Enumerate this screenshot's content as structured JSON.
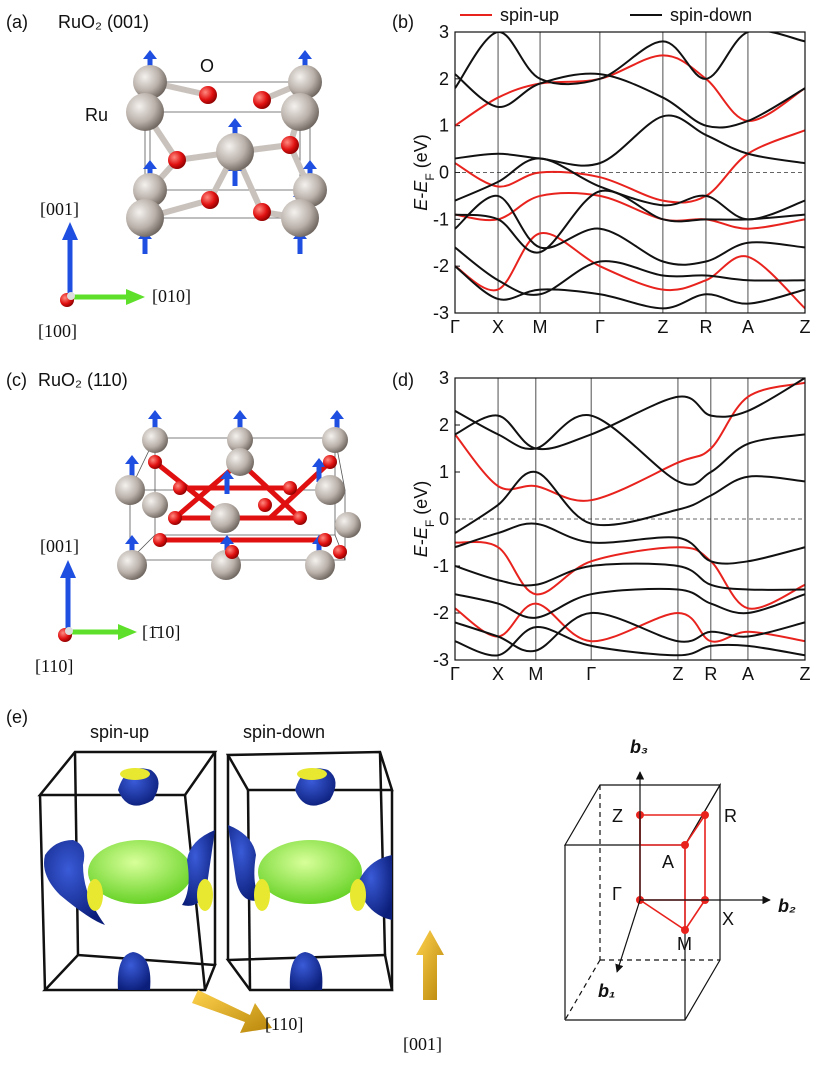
{
  "panel_labels": [
    "(a)",
    "(b)",
    "(c)",
    "(d)",
    "(e)"
  ],
  "structure_a": {
    "title": "RuO₂ (001)",
    "atom_labels": [
      "O",
      "Ru"
    ],
    "axes": [
      "[001]",
      "[010]",
      "[100]"
    ]
  },
  "structure_c": {
    "title": "RuO₂ (110)",
    "axes": [
      "[001]",
      "[1̄10]",
      "[110]"
    ]
  },
  "chart_data": [
    {
      "type": "line",
      "ylabel_parts": [
        "E",
        "-",
        "E",
        "F",
        " (eV)"
      ],
      "x": [
        0,
        0.123,
        0.243,
        0.414,
        0.594,
        0.717,
        0.837,
        1
      ],
      "xlim": [
        0,
        1
      ],
      "ylim": [
        -3,
        3
      ],
      "yticks": [
        -3,
        -2,
        -1,
        0,
        1,
        2,
        3
      ],
      "xticks": [
        {
          "value": 0,
          "label": "Γ"
        },
        {
          "value": 0.123,
          "label": "X"
        },
        {
          "value": 0.243,
          "label": "M"
        },
        {
          "value": 0.414,
          "label": "Γ"
        },
        {
          "value": 0.594,
          "label": "Z"
        },
        {
          "value": 0.717,
          "label": "R"
        },
        {
          "value": 0.837,
          "label": "A"
        },
        {
          "value": 1,
          "label": "Z"
        }
      ],
      "reference_line": 0,
      "legend": "top",
      "series": [
        {
          "name": "spin-up",
          "color": "#e8231e",
          "bands": [
            [
              1.0,
              1.6,
              1.9,
              2.0,
              2.5,
              2.0,
              1.1,
              1.8
            ],
            [
              0.2,
              -0.3,
              0.0,
              -0.1,
              -0.6,
              -0.5,
              0.4,
              0.9
            ],
            [
              -0.9,
              -1.0,
              -0.5,
              -0.5,
              -1.0,
              -1.0,
              -1.2,
              -1.0
            ],
            [
              -2.0,
              -2.5,
              -1.3,
              -2.0,
              -2.5,
              -2.3,
              -1.8,
              -2.9
            ]
          ]
        },
        {
          "name": "spin-down",
          "color": "#111111",
          "bands": [
            [
              2.1,
              1.4,
              1.9,
              2.1,
              1.6,
              1.0,
              1.1,
              1.8
            ],
            [
              1.8,
              3.0,
              2.0,
              2.0,
              2.8,
              2.0,
              3.0,
              2.8
            ],
            [
              0.3,
              0.4,
              0.3,
              0.2,
              1.2,
              0.8,
              0.4,
              0.2
            ],
            [
              -0.6,
              -0.2,
              0.3,
              -0.3,
              -0.7,
              -0.5,
              -1.0,
              -0.6
            ],
            [
              -0.9,
              -1.0,
              -1.7,
              -0.4,
              -1.0,
              -1.0,
              -1.0,
              -0.9
            ],
            [
              -1.2,
              -0.5,
              -1.6,
              -1.2,
              -1.9,
              -1.9,
              -1.5,
              -1.6
            ],
            [
              -1.6,
              -2.3,
              -2.6,
              -1.9,
              -2.2,
              -2.2,
              -2.3,
              -2.3
            ],
            [
              -2.0,
              -2.7,
              -2.5,
              -2.6,
              -2.9,
              -2.6,
              -2.8,
              -2.5
            ]
          ]
        }
      ]
    },
    {
      "type": "line",
      "ylabel_parts": [
        "E",
        "-",
        "E",
        "F",
        " (eV)"
      ],
      "x": [
        0,
        0.123,
        0.231,
        0.389,
        0.637,
        0.731,
        0.837,
        1
      ],
      "xlim": [
        0,
        1
      ],
      "ylim": [
        -3,
        3
      ],
      "yticks": [
        -3,
        -2,
        -1,
        0,
        1,
        2,
        3
      ],
      "xticks": [
        {
          "value": 0,
          "label": "Γ"
        },
        {
          "value": 0.123,
          "label": "X"
        },
        {
          "value": 0.231,
          "label": "M"
        },
        {
          "value": 0.389,
          "label": "Γ"
        },
        {
          "value": 0.637,
          "label": "Z"
        },
        {
          "value": 0.731,
          "label": "R"
        },
        {
          "value": 0.837,
          "label": "A"
        },
        {
          "value": 1,
          "label": "Z"
        }
      ],
      "reference_line": 0,
      "series": [
        {
          "color": "#e8231e",
          "bands": [
            [
              1.8,
              0.7,
              0.7,
              0.4,
              1.2,
              1.5,
              2.6,
              2.9
            ],
            [
              -0.5,
              -0.6,
              -1.6,
              -0.9,
              -0.6,
              -0.9,
              -1.9,
              -1.4
            ],
            [
              -1.9,
              -2.5,
              -1.8,
              -2.6,
              -2.0,
              -2.6,
              -2.4,
              -2.6
            ]
          ]
        },
        {
          "color": "#111111",
          "bands": [
            [
              2.3,
              1.8,
              1.5,
              2.2,
              0.8,
              1.0,
              1.6,
              1.8
            ],
            [
              1.8,
              2.2,
              1.5,
              1.8,
              2.6,
              2.2,
              2.3,
              3.0
            ],
            [
              -0.3,
              0.3,
              1.0,
              -0.1,
              0.2,
              0.5,
              0.9,
              0.8
            ],
            [
              -0.6,
              -0.3,
              -0.1,
              -0.5,
              -0.4,
              -0.9,
              -0.9,
              -0.6
            ],
            [
              -1.0,
              -1.3,
              -1.4,
              -1.0,
              -1.0,
              -1.4,
              -1.5,
              -1.5
            ],
            [
              -1.6,
              -1.8,
              -2.1,
              -1.6,
              -1.5,
              -1.8,
              -2.0,
              -1.6
            ],
            [
              -2.2,
              -2.5,
              -2.8,
              -2.0,
              -2.6,
              -2.4,
              -2.5,
              -2.2
            ],
            [
              -2.6,
              -2.9,
              -2.3,
              -2.7,
              -2.9,
              -2.7,
              -2.7,
              -2.9
            ]
          ]
        }
      ]
    }
  ],
  "fermi_surface": {
    "labels": [
      "spin-up",
      "spin-down"
    ],
    "axes": [
      "[110]",
      "[001]"
    ]
  },
  "brillouin_zone": {
    "vectors": [
      "b₃",
      "b₂",
      "b₁"
    ],
    "points": [
      "Z",
      "R",
      "A",
      "Γ",
      "X",
      "M"
    ]
  }
}
